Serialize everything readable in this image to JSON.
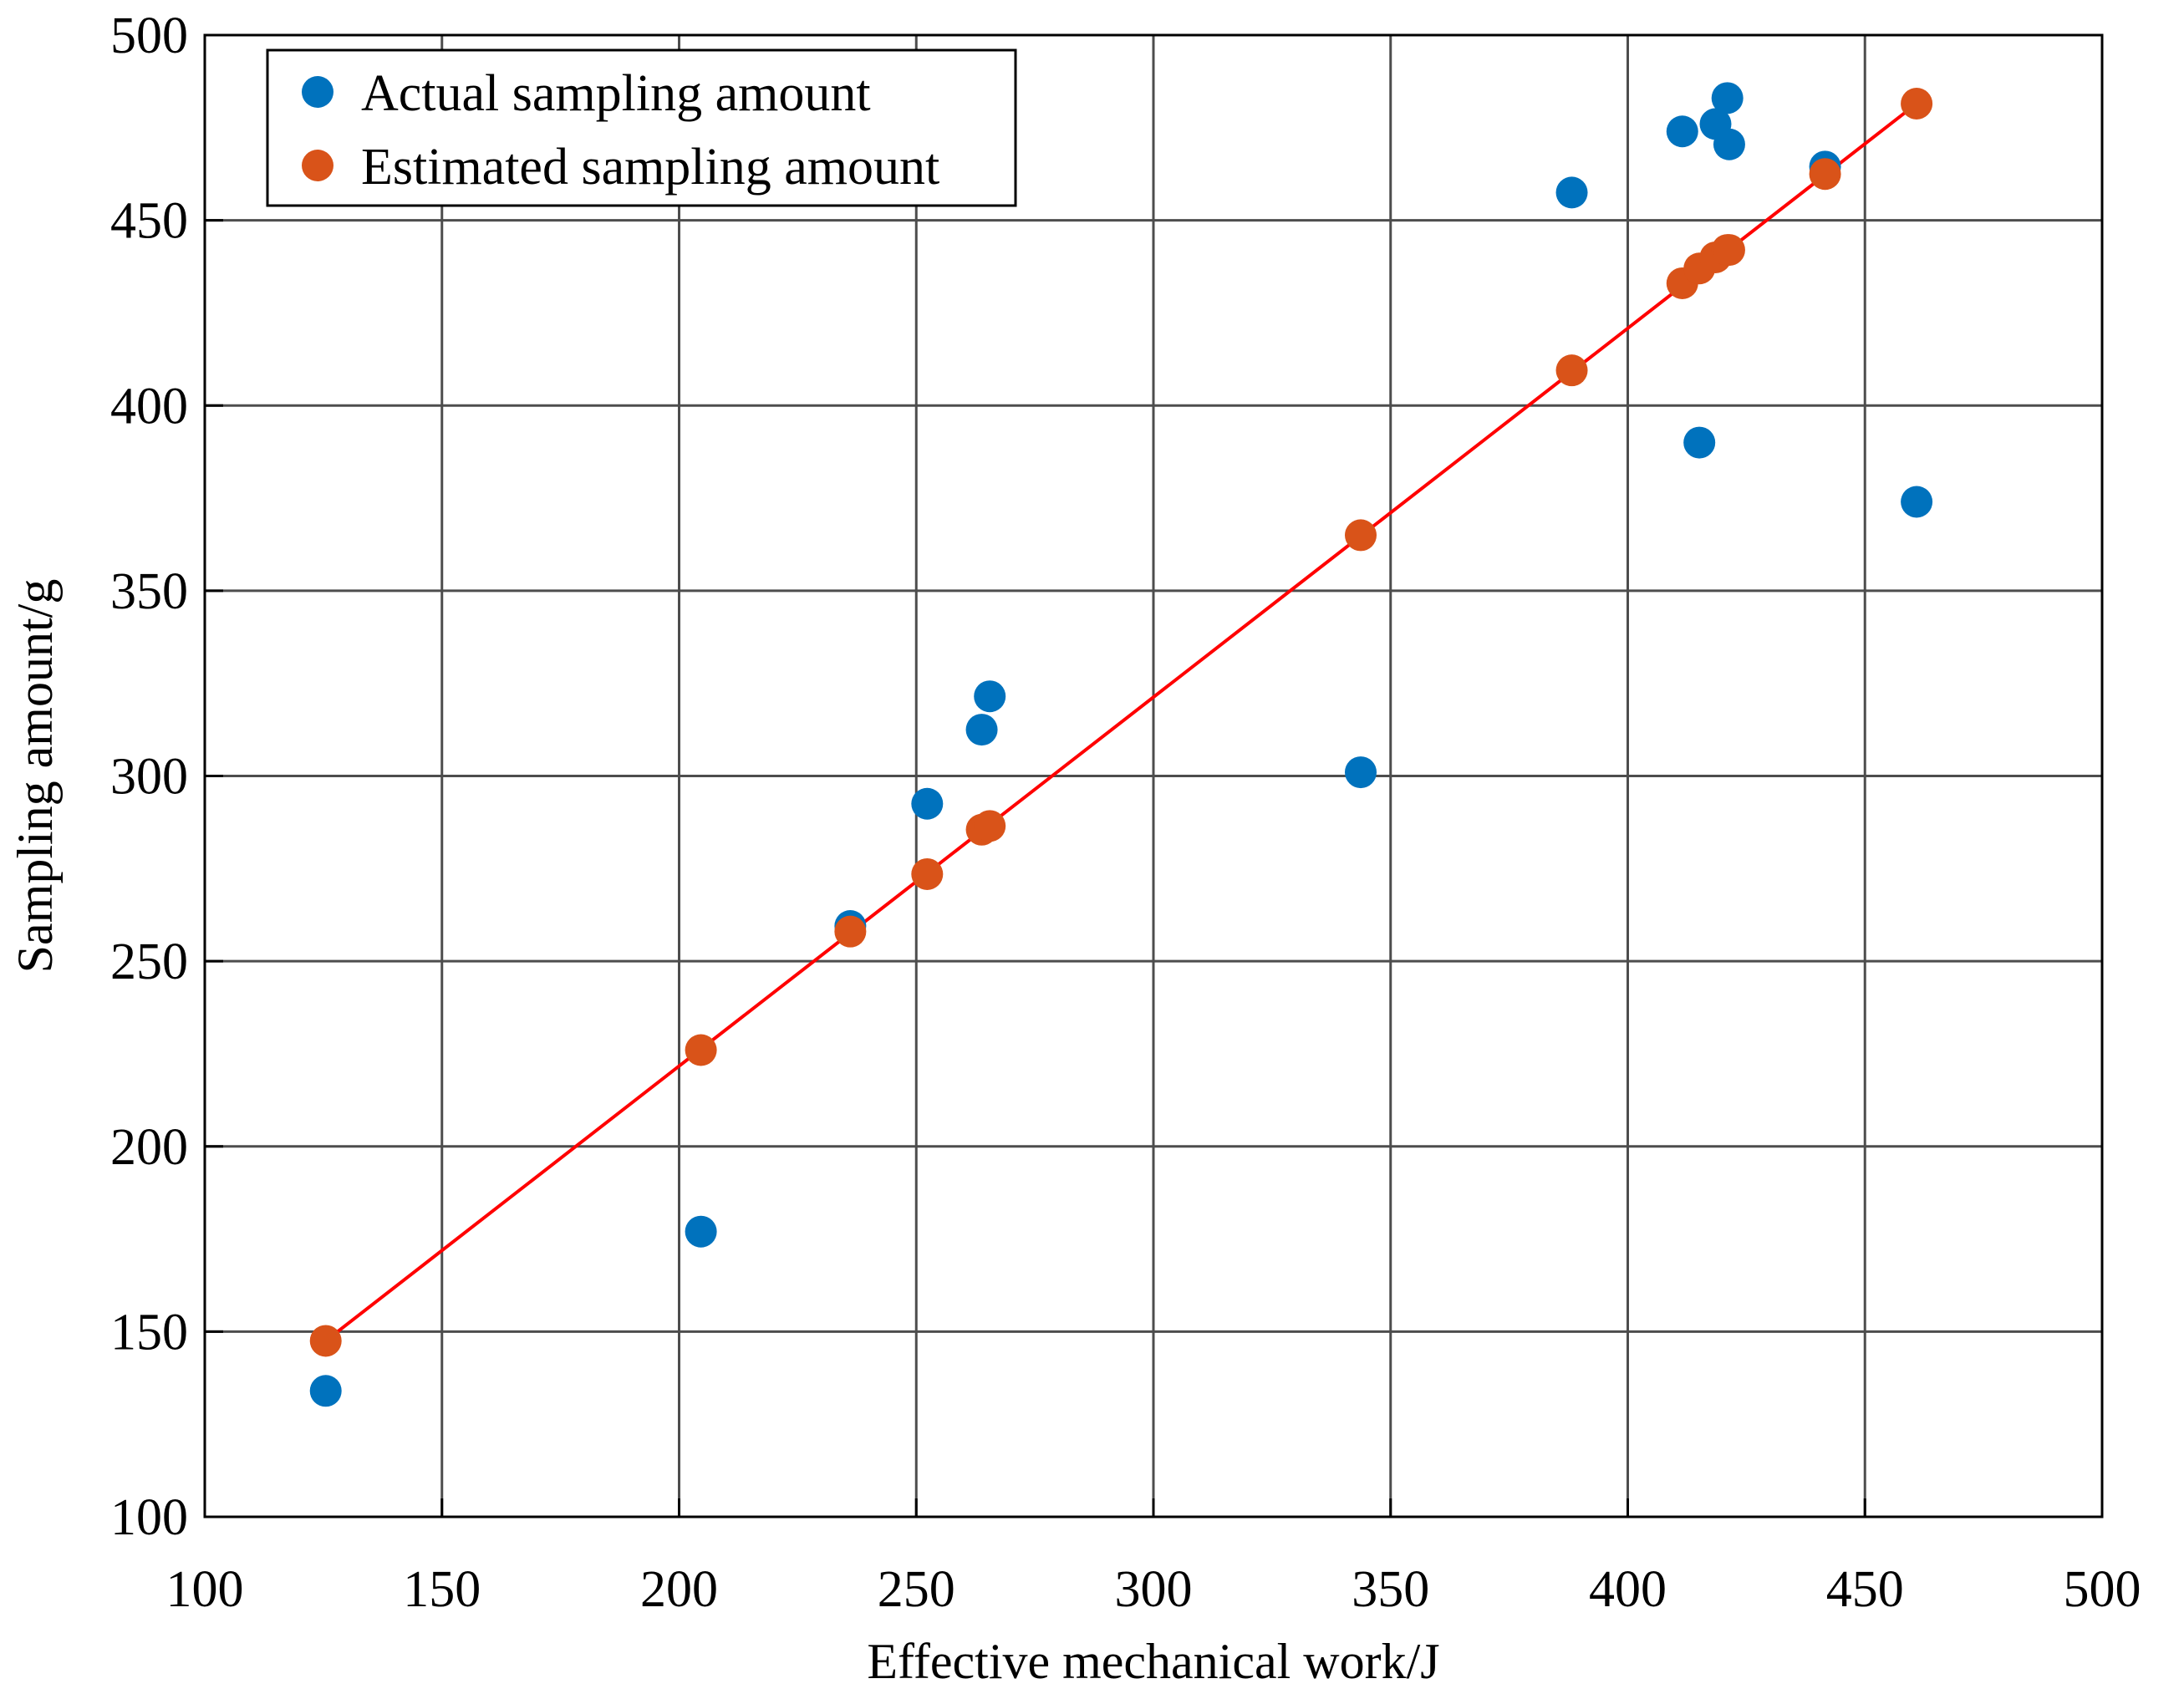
{
  "chart_data": {
    "type": "scatter",
    "xlabel": "Effective mechanical work/J",
    "ylabel": "Sampling amount/g",
    "xlim": [
      100,
      500
    ],
    "ylim": [
      100,
      500
    ],
    "xticks": [
      100,
      150,
      200,
      250,
      300,
      350,
      400,
      450,
      500
    ],
    "yticks": [
      100,
      150,
      200,
      250,
      300,
      350,
      400,
      450,
      500
    ],
    "grid": true,
    "legend_position": "top-left",
    "series": [
      {
        "name": "Actual sampling amount",
        "color": "#0072bd",
        "points": [
          [
            125.5,
            134
          ],
          [
            204.6,
            177
          ],
          [
            236.1,
            259.5
          ],
          [
            252.3,
            292.5
          ],
          [
            263.8,
            312.5
          ],
          [
            265.5,
            321.5
          ],
          [
            343.7,
            301
          ],
          [
            388.2,
            457.5
          ],
          [
            411.5,
            474
          ],
          [
            415.1,
            390
          ],
          [
            418.5,
            476
          ],
          [
            421,
            483
          ],
          [
            421.4,
            470.5
          ],
          [
            441.6,
            464.5
          ],
          [
            460.9,
            374
          ]
        ]
      },
      {
        "name": "Estimated sampling amount",
        "color": "#d95319",
        "points": [
          [
            125.5,
            147.5
          ],
          [
            204.6,
            226
          ],
          [
            236.1,
            258
          ],
          [
            252.3,
            273.5
          ],
          [
            263.8,
            285.5
          ],
          [
            265.5,
            286.5
          ],
          [
            343.7,
            365
          ],
          [
            388.2,
            409.5
          ],
          [
            411.5,
            433
          ],
          [
            415.1,
            437
          ],
          [
            418.5,
            440
          ],
          [
            421,
            442
          ],
          [
            421.4,
            442
          ],
          [
            441.6,
            462.5
          ],
          [
            460.9,
            481.5
          ]
        ]
      }
    ],
    "fit_line": {
      "name": "Fitted line",
      "color": "#ff0000",
      "x": [
        125.5,
        460.9
      ],
      "y": [
        147.5,
        481.5
      ]
    }
  }
}
